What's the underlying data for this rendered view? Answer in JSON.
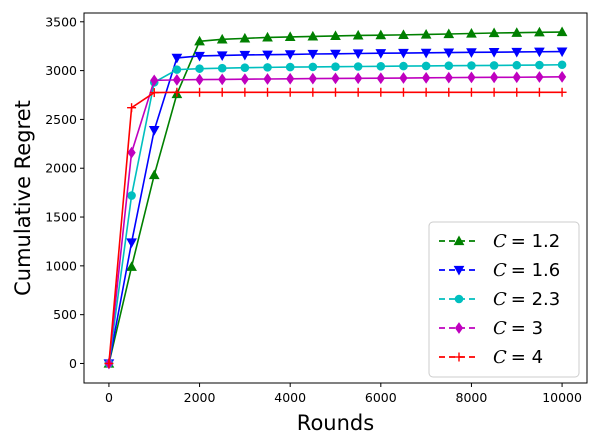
{
  "chart_data": {
    "type": "line",
    "title": "",
    "xlabel": "Rounds",
    "ylabel": "Cumulative Regret",
    "xlim": [
      -550,
      10550
    ],
    "ylim": [
      -200,
      3590
    ],
    "xticks": [
      0,
      2000,
      4000,
      6000,
      8000,
      10000
    ],
    "yticks": [
      0,
      500,
      1000,
      1500,
      2000,
      2500,
      3000,
      3500
    ],
    "grid": false,
    "legend_position": "lower-right",
    "x": [
      0,
      500,
      1000,
      1500,
      2000,
      2500,
      3000,
      3500,
      4000,
      4500,
      5000,
      5500,
      6000,
      6500,
      7000,
      7500,
      8000,
      8500,
      9000,
      9500,
      10000
    ],
    "series": [
      {
        "name": "C = 1.2",
        "label_var": "C",
        "label_eq": "= 1.2",
        "color": "#008000",
        "marker": "triangle-up",
        "values": [
          0,
          990,
          1930,
          2760,
          3300,
          3320,
          3330,
          3340,
          3345,
          3350,
          3355,
          3360,
          3363,
          3366,
          3370,
          3375,
          3380,
          3385,
          3388,
          3392,
          3395
        ]
      },
      {
        "name": "C = 1.6",
        "label_var": "C",
        "label_eq": "= 1.6",
        "color": "#0000ff",
        "marker": "triangle-down",
        "values": [
          0,
          1240,
          2390,
          3130,
          3150,
          3155,
          3160,
          3163,
          3166,
          3170,
          3172,
          3175,
          3178,
          3180,
          3182,
          3185,
          3187,
          3189,
          3191,
          3193,
          3195
        ]
      },
      {
        "name": "C = 2.3",
        "label_var": "C",
        "label_eq": "= 2.3",
        "color": "#00bfbf",
        "marker": "circle",
        "values": [
          0,
          1720,
          2880,
          3010,
          3020,
          3025,
          3030,
          3033,
          3036,
          3038,
          3040,
          3042,
          3044,
          3046,
          3048,
          3050,
          3052,
          3053,
          3055,
          3057,
          3060
        ]
      },
      {
        "name": "C = 3",
        "label_var": "C",
        "label_eq": "= 3",
        "color": "#bf00bf",
        "marker": "diamond",
        "values": [
          0,
          2160,
          2900,
          2905,
          2908,
          2910,
          2912,
          2914,
          2916,
          2918,
          2920,
          2921,
          2922,
          2924,
          2926,
          2928,
          2930,
          2931,
          2932,
          2934,
          2936
        ]
      },
      {
        "name": "C = 4",
        "label_var": "C",
        "label_eq": "= 4",
        "color": "#ff0000",
        "marker": "plus",
        "values": [
          0,
          2620,
          2775,
          2778,
          2778,
          2778,
          2778,
          2778,
          2778,
          2778,
          2778,
          2778,
          2778,
          2778,
          2778,
          2778,
          2778,
          2778,
          2778,
          2778,
          2778
        ]
      }
    ]
  }
}
